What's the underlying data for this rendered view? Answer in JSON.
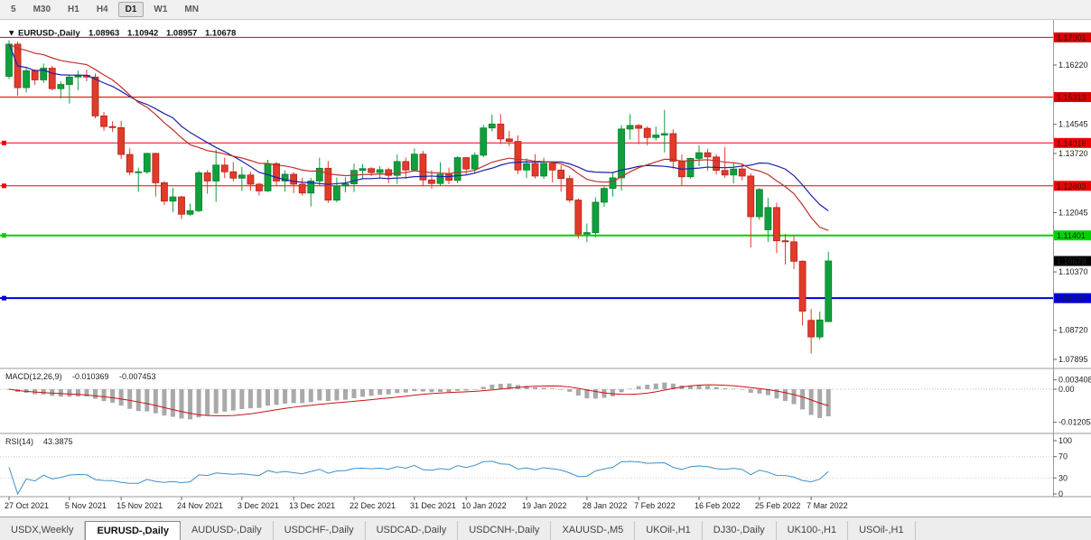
{
  "toolbar": {
    "timeframes": [
      {
        "label": "5",
        "active": false
      },
      {
        "label": "M30",
        "active": false
      },
      {
        "label": "H1",
        "active": false
      },
      {
        "label": "H4",
        "active": false
      },
      {
        "label": "D1",
        "active": true
      },
      {
        "label": "W1",
        "active": false
      },
      {
        "label": "MN",
        "active": false
      }
    ]
  },
  "chart_header": {
    "collapse_icon": "▼",
    "symbol": "EURUSD-,Daily",
    "open": "1.08963",
    "high": "1.10942",
    "low": "1.08957",
    "close": "1.10678"
  },
  "price_scale": {
    "labels": [
      {
        "text": "1.16220",
        "price": 1.1622
      },
      {
        "text": "1.14545",
        "price": 1.14545
      },
      {
        "text": "1.13720",
        "price": 1.1372
      },
      {
        "text": "1.12045",
        "price": 1.12045
      },
      {
        "text": "1.10370",
        "price": 1.1037
      },
      {
        "text": "1.08720",
        "price": 1.0872
      },
      {
        "text": "1.07895",
        "price": 1.07895
      }
    ]
  },
  "levels": [
    {
      "price": 1.17001,
      "label": "1.17001",
      "color": "#dd0000",
      "width": 1,
      "marker": false
    },
    {
      "price": 1.15313,
      "label": "1.15313",
      "color": "#dd0000",
      "width": 1,
      "marker": false
    },
    {
      "price": 1.14016,
      "label": "1.14016",
      "color": "#ee0000",
      "width": 1,
      "marker": true
    },
    {
      "price": 1.12803,
      "label": "1.12803",
      "color": "#ee0000",
      "width": 1,
      "marker": true
    },
    {
      "price": 1.11401,
      "label": "1.11401",
      "color": "#00d400",
      "width": 2,
      "marker": true
    },
    {
      "price": 1.09627,
      "label": "1.09627",
      "color": "#0000dd",
      "width": 2,
      "marker": true
    }
  ],
  "current_price": {
    "price": 1.10678,
    "label": "1.10678",
    "bg": "#000000"
  },
  "macd_panel": {
    "name": "MACD(12,26,9)",
    "value_main": "-0.010369",
    "value_signal": "-0.007453",
    "scale_labels": [
      {
        "text": "0.003408",
        "value": 0.003408
      },
      {
        "text": "0.00",
        "value": 0
      },
      {
        "text": "-0.012054",
        "value": -0.012054
      }
    ]
  },
  "rsi_panel": {
    "name": "RSI(14)",
    "value": "43.3875",
    "scale_labels": [
      {
        "text": "100",
        "value": 100
      },
      {
        "text": "70",
        "value": 70
      },
      {
        "text": "30",
        "value": 30
      },
      {
        "text": "0",
        "value": 0
      }
    ]
  },
  "x_axis": {
    "labels": [
      {
        "text": "27 Oct 2021",
        "i": 0
      },
      {
        "text": "5 Nov 2021",
        "i": 7
      },
      {
        "text": "15 Nov 2021",
        "i": 13
      },
      {
        "text": "24 Nov 2021",
        "i": 20
      },
      {
        "text": "3 Dec 2021",
        "i": 27
      },
      {
        "text": "13 Dec 2021",
        "i": 33
      },
      {
        "text": "22 Dec 2021",
        "i": 40
      },
      {
        "text": "31 Dec 2021",
        "i": 47
      },
      {
        "text": "10 Jan 2022",
        "i": 53
      },
      {
        "text": "19 Jan 2022",
        "i": 60
      },
      {
        "text": "28 Jan 2022",
        "i": 67
      },
      {
        "text": "7 Feb 2022",
        "i": 73
      },
      {
        "text": "16 Feb 2022",
        "i": 80
      },
      {
        "text": "25 Feb 2022",
        "i": 87
      },
      {
        "text": "7 Mar 2022",
        "i": 93
      }
    ]
  },
  "tabs": [
    {
      "label": "USDX,Weekly",
      "active": false
    },
    {
      "label": "EURUSD-,Daily",
      "active": true
    },
    {
      "label": "AUDUSD-,Daily",
      "active": false
    },
    {
      "label": "USDCHF-,Daily",
      "active": false
    },
    {
      "label": "USDCAD-,Daily",
      "active": false
    },
    {
      "label": "USDCNH-,Daily",
      "active": false
    },
    {
      "label": "XAUUSD-,M5",
      "active": false
    },
    {
      "label": "UKOil-,H1",
      "active": false
    },
    {
      "label": "DJ30-,Daily",
      "active": false
    },
    {
      "label": "UK100-,H1",
      "active": false
    },
    {
      "label": "USOil-,H1",
      "active": false
    }
  ],
  "colors": {
    "candle_up": "#0fa03c",
    "candle_up_border": "#0a7d2e",
    "candle_down": "#e23a2b",
    "candle_down_border": "#b12417",
    "ma_blue": "#2020a8",
    "ma_red": "#c03028",
    "macd_hist": "#a9a9a9",
    "macd_signal": "#cc1111",
    "rsi_line": "#3e8fc9",
    "scale_text": "#222222",
    "chip_text": "#ffffff"
  },
  "chart_data": {
    "type": "candlestick",
    "symbol": "EURUSD-",
    "timeframe": "Daily",
    "ohlc_display": {
      "open": 1.08963,
      "high": 1.10942,
      "low": 1.08957,
      "close": 1.10678
    },
    "y_range_main": [
      1.0772,
      1.1745
    ],
    "horizontal_lines": [
      1.17001,
      1.15313,
      1.14016,
      1.12803,
      1.11401,
      1.09627
    ],
    "overlays": [
      {
        "type": "sma",
        "estimated_period": 20,
        "color": "blue"
      },
      {
        "type": "ema",
        "estimated_period": 20,
        "color": "red"
      }
    ],
    "indicators": [
      {
        "type": "MACD",
        "params": [
          12,
          26,
          9
        ],
        "last_values": [
          -0.010369,
          -0.007453
        ],
        "scale": [
          0.003408,
          -0.012054
        ]
      },
      {
        "type": "RSI",
        "params": [
          14
        ],
        "last_value": 43.3875,
        "scale": [
          0,
          100
        ],
        "levels": [
          30,
          70
        ]
      }
    ],
    "x_tick_labels": [
      "27 Oct 2021",
      "5 Nov 2021",
      "15 Nov 2021",
      "24 Nov 2021",
      "3 Dec 2021",
      "13 Dec 2021",
      "22 Dec 2021",
      "31 Dec 2021",
      "10 Jan 2022",
      "19 Jan 2022",
      "28 Jan 2022",
      "7 Feb 2022",
      "16 Feb 2022",
      "25 Feb 2022",
      "7 Mar 2022"
    ],
    "candles": [
      [
        1.159,
        1.1692,
        1.1582,
        1.1681
      ],
      [
        1.1681,
        1.1689,
        1.1535,
        1.1558
      ],
      [
        1.1558,
        1.1617,
        1.1544,
        1.1606
      ],
      [
        1.1606,
        1.161,
        1.1566,
        1.158
      ],
      [
        1.158,
        1.1626,
        1.1572,
        1.1613
      ],
      [
        1.1613,
        1.162,
        1.155,
        1.1555
      ],
      [
        1.1555,
        1.1576,
        1.1527,
        1.1567
      ],
      [
        1.1567,
        1.1595,
        1.1513,
        1.1588
      ],
      [
        1.1588,
        1.1606,
        1.1551,
        1.1593
      ],
      [
        1.1593,
        1.1609,
        1.1576,
        1.1588
      ],
      [
        1.1588,
        1.1598,
        1.1471,
        1.1478
      ],
      [
        1.1478,
        1.1489,
        1.1436,
        1.1448
      ],
      [
        1.1448,
        1.1463,
        1.1433,
        1.1445
      ],
      [
        1.1445,
        1.1464,
        1.1356,
        1.1369
      ],
      [
        1.1369,
        1.1386,
        1.131,
        1.1319
      ],
      [
        1.1319,
        1.1332,
        1.1263,
        1.132
      ],
      [
        1.132,
        1.1374,
        1.1314,
        1.1372
      ],
      [
        1.1372,
        1.1374,
        1.125,
        1.1289
      ],
      [
        1.1289,
        1.1294,
        1.1226,
        1.1237
      ],
      [
        1.1237,
        1.1275,
        1.1206,
        1.1249
      ],
      [
        1.1249,
        1.1252,
        1.1186,
        1.12
      ],
      [
        1.12,
        1.123,
        1.1196,
        1.121
      ],
      [
        1.121,
        1.1323,
        1.1206,
        1.1317
      ],
      [
        1.1317,
        1.1325,
        1.1258,
        1.1294
      ],
      [
        1.1294,
        1.1383,
        1.1235,
        1.1339
      ],
      [
        1.1339,
        1.136,
        1.1302,
        1.132
      ],
      [
        1.132,
        1.1348,
        1.1293,
        1.1302
      ],
      [
        1.1302,
        1.1334,
        1.1266,
        1.1311
      ],
      [
        1.1311,
        1.132,
        1.1267,
        1.1285
      ],
      [
        1.1285,
        1.1289,
        1.1253,
        1.1266
      ],
      [
        1.1266,
        1.1354,
        1.1263,
        1.1343
      ],
      [
        1.1343,
        1.1348,
        1.128,
        1.1294
      ],
      [
        1.1294,
        1.1324,
        1.1264,
        1.1313
      ],
      [
        1.1313,
        1.1319,
        1.126,
        1.1285
      ],
      [
        1.1285,
        1.1303,
        1.1253,
        1.126
      ],
      [
        1.126,
        1.1303,
        1.1222,
        1.1294
      ],
      [
        1.1294,
        1.136,
        1.1281,
        1.133
      ],
      [
        1.133,
        1.135,
        1.1232,
        1.124
      ],
      [
        1.124,
        1.1304,
        1.1234,
        1.128
      ],
      [
        1.128,
        1.1305,
        1.1262,
        1.1286
      ],
      [
        1.1286,
        1.1343,
        1.1263,
        1.1324
      ],
      [
        1.1324,
        1.1342,
        1.1301,
        1.1329
      ],
      [
        1.1329,
        1.1333,
        1.1308,
        1.1318
      ],
      [
        1.1318,
        1.1336,
        1.1304,
        1.1326
      ],
      [
        1.1326,
        1.1332,
        1.1288,
        1.131
      ],
      [
        1.131,
        1.1369,
        1.1286,
        1.1349
      ],
      [
        1.1349,
        1.136,
        1.13,
        1.1325
      ],
      [
        1.1325,
        1.1386,
        1.1321,
        1.137
      ],
      [
        1.137,
        1.1379,
        1.1279,
        1.1297
      ],
      [
        1.1297,
        1.1324,
        1.1272,
        1.1287
      ],
      [
        1.1287,
        1.1347,
        1.1281,
        1.1313
      ],
      [
        1.1313,
        1.1332,
        1.1285,
        1.1296
      ],
      [
        1.1296,
        1.1364,
        1.1288,
        1.136
      ],
      [
        1.136,
        1.1362,
        1.1313,
        1.1328
      ],
      [
        1.1328,
        1.1375,
        1.1314,
        1.1367
      ],
      [
        1.1367,
        1.1453,
        1.1361,
        1.1444
      ],
      [
        1.1444,
        1.1482,
        1.1434,
        1.1455
      ],
      [
        1.1455,
        1.1483,
        1.1398,
        1.1413
      ],
      [
        1.1413,
        1.1436,
        1.1392,
        1.1406
      ],
      [
        1.1406,
        1.1423,
        1.1314,
        1.1325
      ],
      [
        1.1325,
        1.1358,
        1.1302,
        1.1343
      ],
      [
        1.1343,
        1.137,
        1.1301,
        1.1308
      ],
      [
        1.1308,
        1.136,
        1.13,
        1.1344
      ],
      [
        1.1344,
        1.1349,
        1.129,
        1.1325
      ],
      [
        1.1325,
        1.1339,
        1.1264,
        1.1301
      ],
      [
        1.1301,
        1.131,
        1.1233,
        1.124
      ],
      [
        1.124,
        1.1245,
        1.1131,
        1.1144
      ],
      [
        1.1144,
        1.1174,
        1.1121,
        1.1148
      ],
      [
        1.1148,
        1.1248,
        1.1135,
        1.1234
      ],
      [
        1.1234,
        1.1279,
        1.1221,
        1.1273
      ],
      [
        1.1273,
        1.132,
        1.125,
        1.1303
      ],
      [
        1.1303,
        1.1452,
        1.1267,
        1.1441
      ],
      [
        1.1441,
        1.1483,
        1.1411,
        1.1451
      ],
      [
        1.1451,
        1.1455,
        1.1398,
        1.1443
      ],
      [
        1.1443,
        1.1449,
        1.1395,
        1.1417
      ],
      [
        1.1417,
        1.1448,
        1.1409,
        1.1424
      ],
      [
        1.1424,
        1.1495,
        1.1375,
        1.1428
      ],
      [
        1.1428,
        1.144,
        1.1329,
        1.135
      ],
      [
        1.135,
        1.1369,
        1.128,
        1.1306
      ],
      [
        1.1306,
        1.136,
        1.1301,
        1.1358
      ],
      [
        1.1358,
        1.1395,
        1.1336,
        1.1374
      ],
      [
        1.1374,
        1.1385,
        1.1324,
        1.1362
      ],
      [
        1.1362,
        1.137,
        1.1312,
        1.1324
      ],
      [
        1.1324,
        1.139,
        1.1303,
        1.1311
      ],
      [
        1.1311,
        1.1344,
        1.1287,
        1.1328
      ],
      [
        1.1328,
        1.1342,
        1.1296,
        1.1308
      ],
      [
        1.1308,
        1.1316,
        1.1106,
        1.1193
      ],
      [
        1.1193,
        1.1274,
        1.1184,
        1.127
      ],
      [
        1.1156,
        1.1246,
        1.1122,
        1.1219
      ],
      [
        1.1219,
        1.1232,
        1.109,
        1.1125
      ],
      [
        1.1125,
        1.1144,
        1.1058,
        1.1122
      ],
      [
        1.1122,
        1.1139,
        1.1045,
        1.1067
      ],
      [
        1.1067,
        1.107,
        1.0885,
        1.0926
      ],
      [
        1.09,
        1.0932,
        1.0806,
        1.0853
      ],
      [
        1.0853,
        1.0925,
        1.0845,
        1.0901
      ],
      [
        1.08963,
        1.10942,
        1.08957,
        1.10678
      ]
    ]
  }
}
